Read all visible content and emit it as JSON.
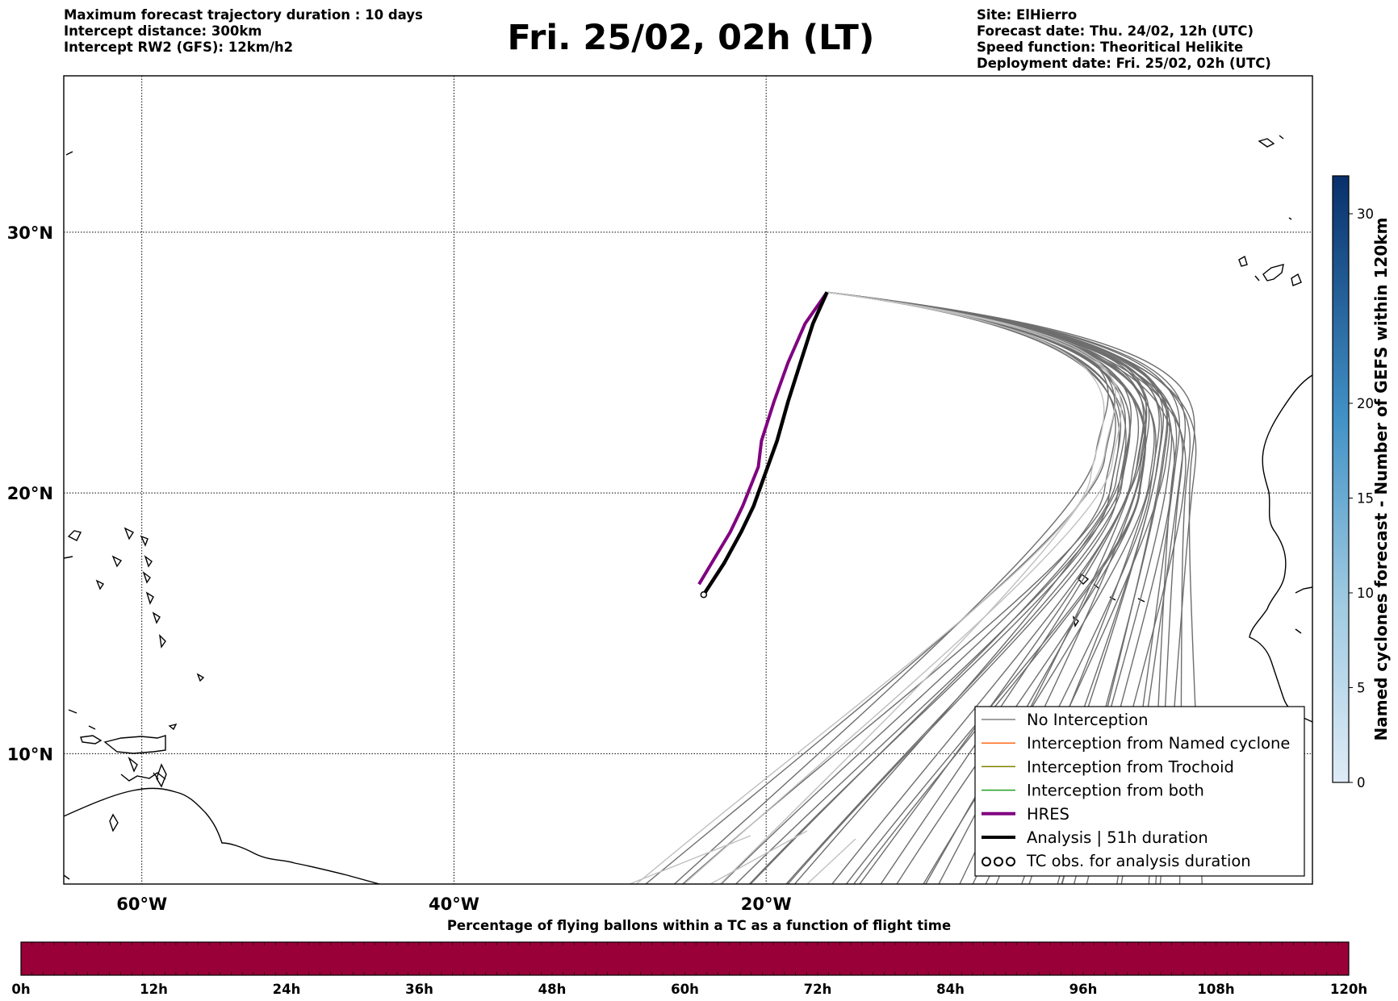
{
  "header": {
    "left_lines": [
      "Maximum forecast trajectory duration : 10 days",
      "Intercept distance: 300km",
      "Intercept RW2 (GFS):  12km/h2"
    ],
    "title": "Fri. 25/02, 02h (LT)",
    "right_lines": [
      "Site: ElHierro",
      "Forecast date: Thu. 24/02, 12h (UTC)",
      "Speed function: Theoritical Helikite",
      "Deployment date: Fri. 25/02, 02h (UTC)"
    ]
  },
  "map": {
    "lon_range": [
      -65,
      15
    ],
    "lat_range": [
      5,
      36
    ],
    "lat_ticks": [
      {
        "lat": 30,
        "label": "30°N"
      },
      {
        "lat": 20,
        "label": "20°N"
      },
      {
        "lat": 10,
        "label": "10°N"
      }
    ],
    "lon_ticks": [
      {
        "lon": -60,
        "label": "60°W"
      },
      {
        "lon": -40,
        "label": "40°W"
      },
      {
        "lon": -20,
        "label": "20°W"
      }
    ]
  },
  "legend": {
    "items": [
      {
        "label": "No Interception",
        "color": "#808080",
        "style": "thin"
      },
      {
        "label": "Interception from Named cyclone",
        "color": "#ff6a1a",
        "style": "thin"
      },
      {
        "label": "Interception from Trochoid",
        "color": "#808000",
        "style": "thin"
      },
      {
        "label": "Interception from both",
        "color": "#22a022",
        "style": "thin"
      },
      {
        "label": "HRES",
        "color": "#800080",
        "style": "thick"
      },
      {
        "label": "Analysis | 51h duration",
        "color": "#000000",
        "style": "thick"
      },
      {
        "label": "TC obs. for analysis duration",
        "color": "#000000",
        "style": "symbol"
      }
    ]
  },
  "colorbar_right": {
    "label": "Named cyclones forecast - Number of GEFS within 120km",
    "min": 0,
    "max": 32,
    "ticks": [
      0,
      5,
      10,
      15,
      20,
      30
    ],
    "color_low": "#deebf7",
    "color_high": "#08306b"
  },
  "colorbar_bottom": {
    "label": "Percentage of flying ballons within a TC as a function of flight time",
    "color": "#9a0038",
    "ticks": [
      "0h",
      "12h",
      "24h",
      "36h",
      "48h",
      "60h",
      "72h",
      "84h",
      "96h",
      "108h",
      "120h"
    ]
  },
  "trajectories": {
    "hres": [
      [
        -16.1,
        27.7
      ],
      [
        -17.5,
        26.5
      ],
      [
        -18.6,
        25.0
      ],
      [
        -19.5,
        23.5
      ],
      [
        -20.3,
        22.0
      ],
      [
        -20.5,
        21.0
      ],
      [
        -21.5,
        19.5
      ],
      [
        -22.3,
        18.5
      ],
      [
        -23.5,
        17.3
      ],
      [
        -24.3,
        16.5
      ]
    ],
    "analysis": [
      [
        -16.1,
        27.7
      ],
      [
        -17.0,
        26.5
      ],
      [
        -17.8,
        25.0
      ],
      [
        -18.6,
        23.5
      ],
      [
        -19.3,
        22.0
      ],
      [
        -19.9,
        21.0
      ],
      [
        -20.8,
        19.5
      ],
      [
        -21.6,
        18.5
      ],
      [
        -22.7,
        17.3
      ],
      [
        -24.0,
        16.1
      ]
    ]
  }
}
